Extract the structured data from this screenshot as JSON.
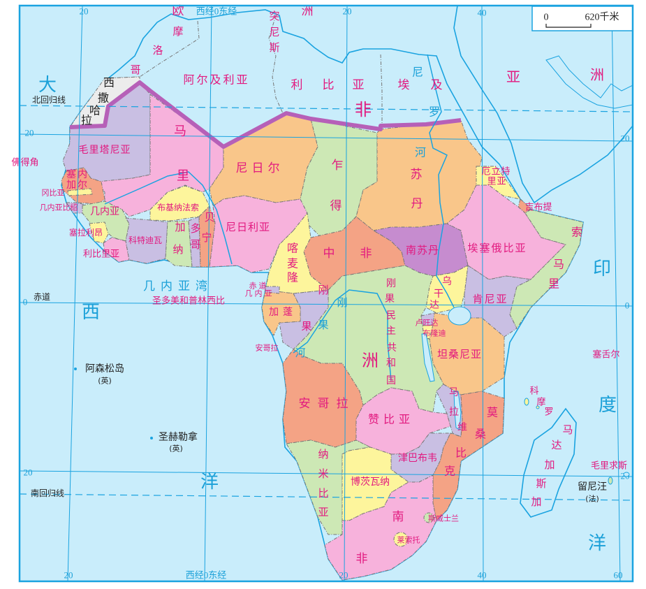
{
  "colors": {
    "ocean": "#c9edfb",
    "land_other": "#ececec",
    "pink": "#f7b2dc",
    "lilac": "#c9bfe3",
    "peach": "#f9c68a",
    "salmon": "#f4a385",
    "green": "#cde8b5",
    "yellow": "#fdf59c",
    "purple": "#c68ccf",
    "label": "#e2197f",
    "water_label": "#1aa0d8",
    "sahara_line": "#b660b8"
  },
  "scale": {
    "zero": "0",
    "distance": "620千米"
  },
  "graticule": {
    "w20_top": "20",
    "meridian0_top": "西经0东经",
    "e20_top": "20",
    "e40_top": "40",
    "n20_left": "20",
    "n20_right": "20",
    "eq_left": "0",
    "eq_right": "0",
    "s20_left": "20",
    "s20_right": "20",
    "w20_bottom": "20",
    "meridian0_bottom": "西经0东经",
    "e20_bottom": "20",
    "e40_bottom": "40",
    "e60_bottom": "60",
    "tropic_cancer": "北回归线",
    "equator": "赤道",
    "tropic_capricorn": "南回归线"
  },
  "continents": {
    "africa": "非洲",
    "europe": "欧洲",
    "asia": "亚洲"
  },
  "oceans": {
    "atlantic": "大西洋",
    "indian": "印度洋",
    "gulf_of_guinea": "几内亚湾"
  },
  "rivers": {
    "nile": "尼罗河",
    "congo": "刚果河"
  },
  "islands": {
    "ascension": "阿森松岛",
    "ascension_owner": "(英)",
    "st_helena": "圣赫勒拿",
    "st_helena_owner": "(英)",
    "reunion": "留尼汪",
    "reunion_owner": "(法)"
  },
  "labels": {
    "morocco": "摩洛哥",
    "western_sahara": "西撒哈拉",
    "algeria": "阿尔及利亚",
    "tunisia": "突尼斯",
    "libya": "利比亚",
    "egypt": "埃及",
    "mauritania": "毛里塔尼亚",
    "mali": "马里",
    "senegal": "塞内加尔",
    "gambia": "冈比亚",
    "guinea_bissau": "几内亚比绍",
    "guinea": "几内亚",
    "sierra_leone": "塞拉利昂",
    "liberia": "利比里亚",
    "cote_divoire": "科特迪瓦",
    "burkina_faso": "布基纳法索",
    "ghana": "加纳",
    "togo": "多哥",
    "benin": "贝宁",
    "niger": "尼日尔",
    "nigeria": "尼日利亚",
    "chad": "乍得",
    "cameroon": "喀麦隆",
    "car": "中非",
    "sudan": "苏丹",
    "south_sudan": "南苏丹",
    "eritrea": "厄立特里亚",
    "djibouti": "吉布提",
    "ethiopia": "埃塞俄比亚",
    "somalia": "索马里",
    "kenya": "肯尼亚",
    "uganda": "乌干达",
    "rwanda": "卢旺达",
    "burundi": "布隆迪",
    "tanzania": "坦桑尼亚",
    "equatorial_guinea": "赤道几内亚",
    "sao_tome": "圣多美和普林西比",
    "gabon": "加蓬",
    "congo": "刚果",
    "cabinda": "安哥拉",
    "drc": "刚果民主共和国",
    "angola": "安哥拉",
    "zambia": "赞比亚",
    "malawi": "马拉维",
    "mozambique": "莫桑比克",
    "zimbabwe": "津巴布韦",
    "namibia": "纳米比亚",
    "botswana": "博茨瓦纳",
    "south_africa": "南非",
    "eswatini": "斯威士兰",
    "lesotho": "莱索托",
    "madagascar": "马达加斯加",
    "cape_verde": "佛得角",
    "seychelles": "塞舌尔",
    "comoros": "科摩罗",
    "mauritius": "毛里求斯"
  }
}
